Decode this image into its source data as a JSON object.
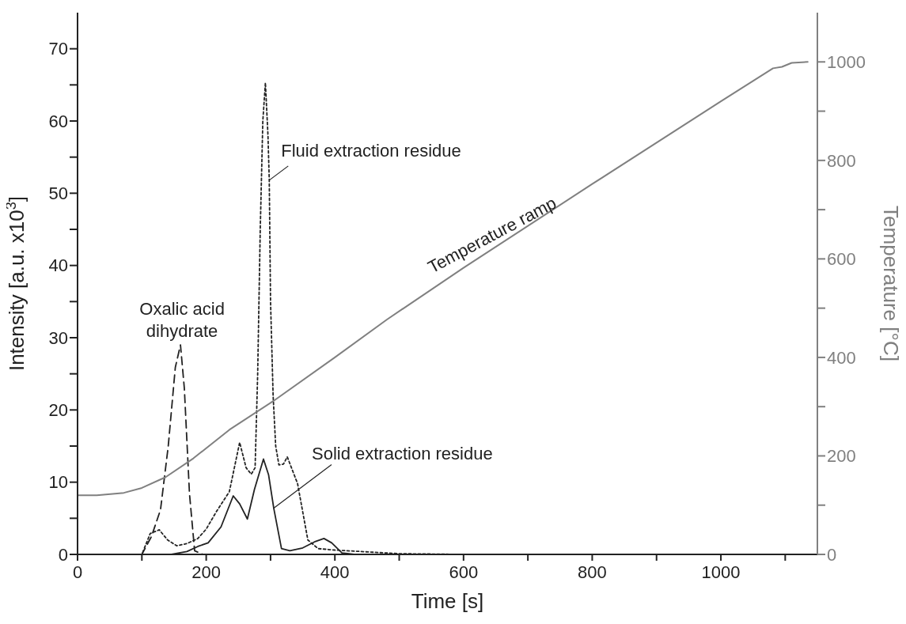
{
  "chart_data": {
    "type": "line",
    "xlabel": "Time [s]",
    "ylabel": "Intensity [a.u. x10$^{3}$]",
    "y2label": "Temperature [°C]",
    "xlim": [
      0,
      1150
    ],
    "xticks": [
      0,
      {
        "value": 100,
        "label": null
      },
      200,
      {
        "value": 300,
        "label": null
      },
      400,
      {
        "value": 500,
        "label": null
      },
      600,
      {
        "value": 700,
        "label": null
      },
      800,
      {
        "value": 900,
        "label": null
      },
      1000,
      {
        "value": 1100,
        "label": null
      }
    ],
    "ylim": [
      0,
      75
    ],
    "yticks": [
      0,
      {
        "value": 5,
        "label": null
      },
      10,
      {
        "value": 15,
        "label": null
      },
      20,
      {
        "value": 25,
        "label": null
      },
      30,
      {
        "value": 35,
        "label": null
      },
      40,
      {
        "value": 45,
        "label": null
      },
      50,
      {
        "value": 55,
        "label": null
      },
      60,
      {
        "value": 65,
        "label": null
      },
      70
    ],
    "y2lim": [
      0,
      1100
    ],
    "y2ticks": [
      0,
      {
        "value": 100,
        "label": null
      },
      200,
      {
        "value": 300,
        "label": null
      },
      400,
      {
        "value": 500,
        "label": null
      },
      600,
      {
        "value": 700,
        "label": null
      },
      800,
      {
        "value": 900,
        "label": null
      },
      1000
    ],
    "grid": false,
    "legend": false,
    "marker": "none",
    "series": [
      {
        "color": "#222222",
        "line_style": "dashed",
        "x": [
          0,
          100,
          115,
          129,
          141,
          152,
          160,
          166,
          174,
          182,
          195,
          1140
        ],
        "values": [
          0,
          0,
          2.5,
          6.2,
          15,
          25.9,
          29,
          23,
          8.4,
          0.5,
          0,
          0
        ]
      },
      {
        "color": "#222222",
        "line_style": "dotted",
        "x": [
          0,
          100,
          113,
          127,
          140,
          154,
          170,
          187,
          200,
          215,
          236,
          252,
          262,
          270,
          276,
          280,
          284,
          288,
          292,
          296,
          298,
          300,
          304,
          308,
          313,
          320,
          326,
          342,
          358,
          374,
          400,
          440,
          500,
          600,
          1140
        ],
        "values": [
          0,
          0,
          2.9,
          3.4,
          2.0,
          1.2,
          1.5,
          2.2,
          3.5,
          5.8,
          8.7,
          15.5,
          12,
          11.1,
          12,
          25,
          45,
          60,
          65.3,
          58,
          51.8,
          35,
          22,
          15,
          12.4,
          12.5,
          13.5,
          9.8,
          2.0,
          0.8,
          0.6,
          0.4,
          0.1,
          0,
          0
        ]
      },
      {
        "color": "#222222",
        "line_style": "solid",
        "x": [
          0,
          146,
          170,
          187,
          203,
          223,
          242,
          252,
          264,
          275,
          289,
          297,
          305,
          317,
          330,
          350,
          370,
          383,
          395,
          411,
          430,
          1140
        ],
        "values": [
          0,
          0,
          0.4,
          1.1,
          1.6,
          3.8,
          8.1,
          7,
          4.9,
          9,
          13.2,
          11,
          6.4,
          0.8,
          0.5,
          0.9,
          1.8,
          2.2,
          1.6,
          0.2,
          0,
          0
        ]
      },
      {
        "color": "#808080",
        "line_style": "solid",
        "axis": "y2",
        "x": [
          0,
          30,
          72,
          100,
          137,
          180,
          236,
          305,
          400,
          481,
          600,
          800,
          1000,
          1081,
          1095,
          1110,
          1135
        ],
        "values": [
          120,
          120,
          125,
          135,
          157,
          195,
          253,
          312,
          400,
          477,
          582,
          752,
          920,
          987,
          990,
          998,
          1000
        ]
      }
    ],
    "annotations": [
      {
        "text": "Oxalic acid dihydrate",
        "x": 160,
        "y": 29
      },
      {
        "text": "Fluid extraction residue",
        "x": 298,
        "y": 51.8
      },
      {
        "text": "Solid extraction residue",
        "x": 305,
        "y": 6.4
      },
      "Temperature ramp"
    ]
  }
}
